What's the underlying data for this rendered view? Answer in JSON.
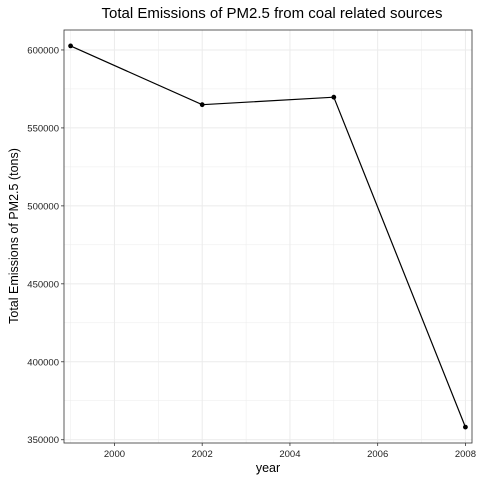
{
  "chart_data": {
    "type": "line",
    "title": "Total Emissions of PM2.5 from coal related sources",
    "xlabel": "year",
    "ylabel": "Total Emissions of PM2.5 (tons)",
    "x": [
      1999,
      2002,
      2005,
      2008
    ],
    "series": [
      {
        "values": [
          602600,
          564900,
          569700,
          358100
        ]
      }
    ],
    "xlim": [
      1998.85,
      2008.15
    ],
    "ylim": [
      347900,
      612800
    ],
    "x_ticks": [
      2000,
      2002,
      2004,
      2006,
      2008
    ],
    "x_tick_labels": [
      "2000",
      "2002",
      "2004",
      "2006",
      "2008"
    ],
    "y_ticks": [
      350000,
      400000,
      450000,
      500000,
      550000,
      600000
    ],
    "y_tick_labels": [
      "350000",
      "400000",
      "450000",
      "500000",
      "550000",
      "600000"
    ],
    "x_minor_ticks": [
      1999,
      2001,
      2003,
      2005,
      2007
    ],
    "y_minor_ticks": [
      375000,
      425000,
      475000,
      525000,
      575000
    ],
    "grid": true,
    "line_color": "#000000",
    "point_color": "#000000",
    "grid_color": "#ebebeb",
    "panel_border_color": "#333333"
  }
}
